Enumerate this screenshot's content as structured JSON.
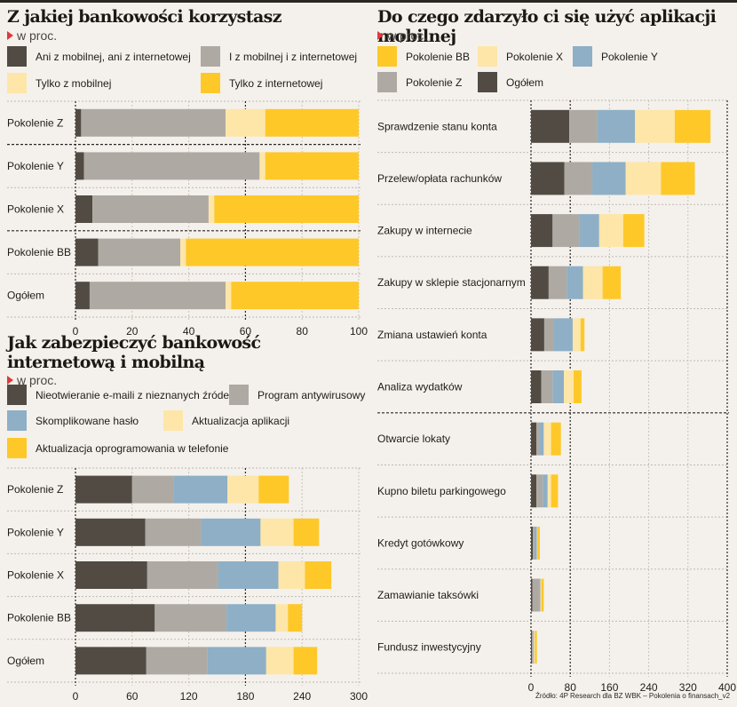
{
  "colors": {
    "dark": "#514b43",
    "gray": "#aeaaa3",
    "blue": "#8eafc6",
    "light": "#fde6a8",
    "yellow": "#fec829",
    "marker": "#e03a3a"
  },
  "source": "Źródło: 4P Research dla BZ WBK – Pokolenia  o finansach_v2",
  "chart_data": [
    {
      "type": "bar",
      "orientation": "horizontal",
      "stacked": true,
      "title": "Z jakiej bankowości korzystasz",
      "unit": "w proc.",
      "categories": [
        "Pokolenie Z",
        "Pokolenie Y",
        "Pokolenie X",
        "Pokolenie BB",
        "Ogółem"
      ],
      "series": [
        {
          "name": "Ani z mobilnej, ani z internetowej",
          "color": "dark",
          "values": [
            2,
            3,
            6,
            8,
            5
          ]
        },
        {
          "name": "I z mobilnej i z internetowej",
          "color": "gray",
          "values": [
            51,
            62,
            41,
            29,
            48
          ]
        },
        {
          "name": "Tylko z mobilnej",
          "color": "light",
          "values": [
            14,
            2,
            2,
            2,
            2
          ]
        },
        {
          "name": "Tylko z internetowej",
          "color": "yellow",
          "values": [
            33,
            33,
            51,
            61,
            45
          ]
        }
      ],
      "xlim": [
        0,
        100
      ],
      "xticks": [
        0,
        20,
        40,
        60,
        80,
        100
      ],
      "xlabel": "",
      "ylabel": "",
      "grid": true,
      "legend": "top"
    },
    {
      "type": "bar",
      "orientation": "horizontal",
      "stacked": true,
      "title": "Jak zabezpieczyć bankowość internetową i mobilną",
      "title_lines": [
        "Jak zabezpieczyć bankowość",
        "internetową i mobilną"
      ],
      "unit": "w proc.",
      "categories": [
        "Pokolenie Z",
        "Pokolenie Y",
        "Pokolenie X",
        "Pokolenie BB",
        "Ogółem"
      ],
      "series": [
        {
          "name": "Nieotwieranie e-maili z nieznanych źródeł",
          "color": "dark",
          "values": [
            60,
            74,
            76,
            84,
            75
          ]
        },
        {
          "name": "Program antywirusowy",
          "color": "gray",
          "values": [
            44,
            59,
            75,
            76,
            65
          ]
        },
        {
          "name": "Skomplikowane hasło",
          "color": "blue",
          "values": [
            57,
            63,
            64,
            52,
            62
          ]
        },
        {
          "name": "Aktualizacja aplikacji",
          "color": "light",
          "values": [
            33,
            35,
            28,
            13,
            29
          ]
        },
        {
          "name": "Aktualizacja oprogramowania w telefonie",
          "color": "yellow",
          "values": [
            32,
            27,
            28,
            15,
            25
          ]
        }
      ],
      "xlim": [
        0,
        300
      ],
      "xticks": [
        0,
        60,
        120,
        180,
        240,
        300
      ],
      "xlabel": "",
      "ylabel": "",
      "grid": true,
      "legend": "top"
    },
    {
      "type": "bar",
      "orientation": "horizontal",
      "stacked": true,
      "title": "Do czego zdarzyło ci się użyć aplikacji mobilnej",
      "unit": "w proc.",
      "categories": [
        "Sprawdzenie stanu konta",
        "Przelew/opłata rachunków",
        "Zakupy w internecie",
        "Zakupy w sklepie stacjonarnym",
        "Zmiana ustawień konta",
        "Analiza wydatków",
        "Otwarcie lokaty",
        "Kupno biletu parkingowego",
        "Kredyt gotówkowy",
        "Zamawianie taksówki",
        "Fundusz inwestycyjny"
      ],
      "series": [
        {
          "name": "Ogółem",
          "color": "dark",
          "values": [
            78,
            68,
            44,
            36,
            27,
            21,
            11,
            11,
            4,
            3,
            2
          ]
        },
        {
          "name": "Pokolenie Z",
          "color": "gray",
          "values": [
            57,
            57,
            54,
            37,
            20,
            23,
            7,
            13,
            3,
            15,
            3
          ]
        },
        {
          "name": "Pokolenie Y",
          "color": "blue",
          "values": [
            77,
            68,
            41,
            33,
            38,
            23,
            8,
            10,
            5,
            1,
            1
          ]
        },
        {
          "name": "Pokolenie X",
          "color": "light",
          "values": [
            81,
            72,
            49,
            40,
            16,
            20,
            15,
            7,
            1,
            2,
            2
          ]
        },
        {
          "name": "Pokolenie BB",
          "color": "yellow",
          "values": [
            73,
            69,
            43,
            37,
            8,
            16,
            20,
            14,
            5,
            5,
            4
          ]
        }
      ],
      "legend_order": [
        "Pokolenie BB",
        "Pokolenie X",
        "Pokolenie Y",
        "Pokolenie Z",
        "Ogółem"
      ],
      "xlim": [
        0,
        400
      ],
      "xticks": [
        0,
        80,
        160,
        240,
        320,
        400
      ],
      "xlabel": "",
      "ylabel": "",
      "grid": true,
      "legend": "top"
    }
  ]
}
